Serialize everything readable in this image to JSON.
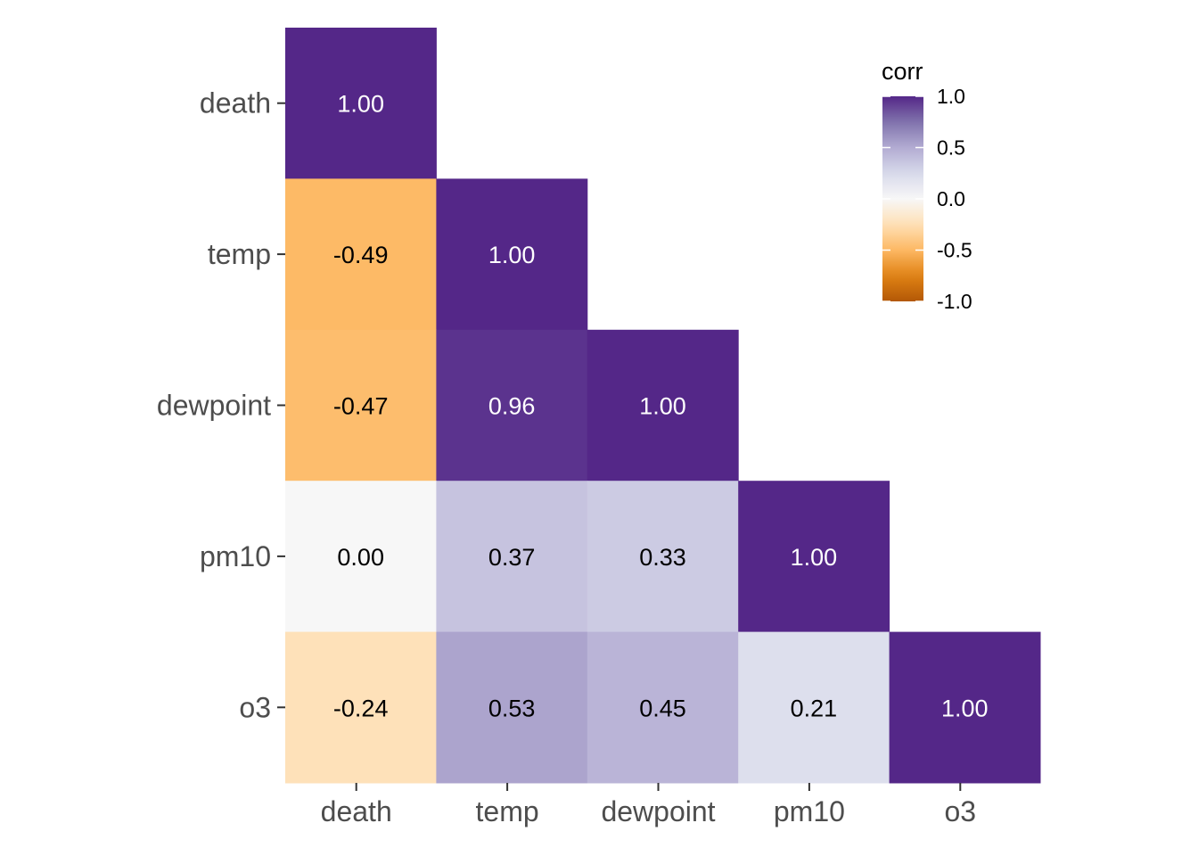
{
  "chart_data": {
    "type": "heatmap",
    "variables": [
      "death",
      "temp",
      "dewpoint",
      "pm10",
      "o3"
    ],
    "x_tick_labels": [
      "death",
      "temp",
      "dewpoint",
      "pm10",
      "o3"
    ],
    "y_tick_labels": [
      "death",
      "temp",
      "dewpoint",
      "pm10",
      "o3"
    ],
    "cells": [
      {
        "row": "death",
        "col": "death",
        "value": 1.0,
        "label": "1.00"
      },
      {
        "row": "temp",
        "col": "death",
        "value": -0.49,
        "label": "-0.49"
      },
      {
        "row": "temp",
        "col": "temp",
        "value": 1.0,
        "label": "1.00"
      },
      {
        "row": "dewpoint",
        "col": "death",
        "value": -0.47,
        "label": "-0.47"
      },
      {
        "row": "dewpoint",
        "col": "temp",
        "value": 0.96,
        "label": "0.96"
      },
      {
        "row": "dewpoint",
        "col": "dewpoint",
        "value": 1.0,
        "label": "1.00"
      },
      {
        "row": "pm10",
        "col": "death",
        "value": 0.0,
        "label": "0.00"
      },
      {
        "row": "pm10",
        "col": "temp",
        "value": 0.37,
        "label": "0.37"
      },
      {
        "row": "pm10",
        "col": "dewpoint",
        "value": 0.33,
        "label": "0.33"
      },
      {
        "row": "pm10",
        "col": "pm10",
        "value": 1.0,
        "label": "1.00"
      },
      {
        "row": "o3",
        "col": "death",
        "value": -0.24,
        "label": "-0.24"
      },
      {
        "row": "o3",
        "col": "temp",
        "value": 0.53,
        "label": "0.53"
      },
      {
        "row": "o3",
        "col": "dewpoint",
        "value": 0.45,
        "label": "0.45"
      },
      {
        "row": "o3",
        "col": "pm10",
        "value": 0.21,
        "label": "0.21"
      },
      {
        "row": "o3",
        "col": "o3",
        "value": 1.0,
        "label": "1.00"
      }
    ],
    "legend": {
      "title": "corr",
      "position": "top-right",
      "range": [
        -1.0,
        1.0
      ],
      "ticks": [
        1.0,
        0.5,
        0.0,
        -0.5,
        -1.0
      ],
      "tick_labels": [
        "1.0",
        "0.5",
        "0.0",
        "-0.5",
        "-1.0"
      ],
      "colors": {
        "high": "#542788",
        "mid": "#f7f7f7",
        "low": "#b35806"
      }
    },
    "colors": {
      "scale": [
        "#b35806",
        "#e08214",
        "#fdb863",
        "#fee0b6",
        "#f7f7f7",
        "#d8daeb",
        "#b2abd2",
        "#8073ac",
        "#542788"
      ],
      "text_dark": "#000000",
      "text_light": "#ffffff",
      "axis_text": "#4d4d4d"
    }
  }
}
